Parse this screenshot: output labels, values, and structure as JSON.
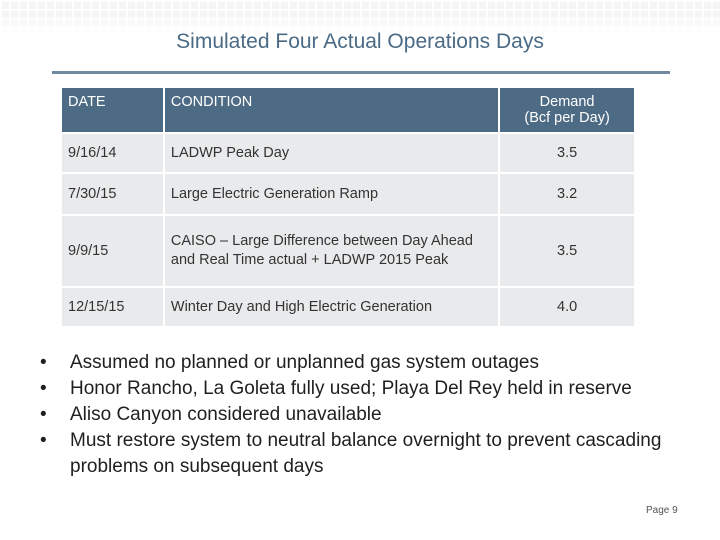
{
  "title": "Simulated Four Actual Operations Days",
  "table": {
    "headers": {
      "date": "DATE",
      "condition": "CONDITION",
      "demand_line1": "Demand",
      "demand_line2": "(Bcf per Day)"
    },
    "rows": [
      {
        "date": "9/16/14",
        "condition": "LADWP Peak Day",
        "demand": "3.5"
      },
      {
        "date": "7/30/15",
        "condition": "Large Electric Generation Ramp",
        "demand": "3.2"
      },
      {
        "date": "9/9/15",
        "condition": "CAISO – Large Difference between Day Ahead and Real Time actual + LADWP 2015 Peak",
        "demand": "3.5"
      },
      {
        "date": "12/15/15",
        "condition": "Winter Day and High Electric Generation",
        "demand": "4.0"
      }
    ]
  },
  "bullets": [
    "Assumed no planned or unplanned gas system outages",
    "Honor Rancho, La Goleta fully used; Playa Del Rey held in reserve",
    "Aliso Canyon considered unavailable",
    "Must restore system to neutral balance overnight to prevent cascading problems on subsequent days"
  ],
  "bullet_symbol": "•",
  "page_number": "Page 9",
  "colors": {
    "header_bg": "#4d6b84",
    "row_bg": "#e9eaeb",
    "title_color": "#4a6a85"
  }
}
